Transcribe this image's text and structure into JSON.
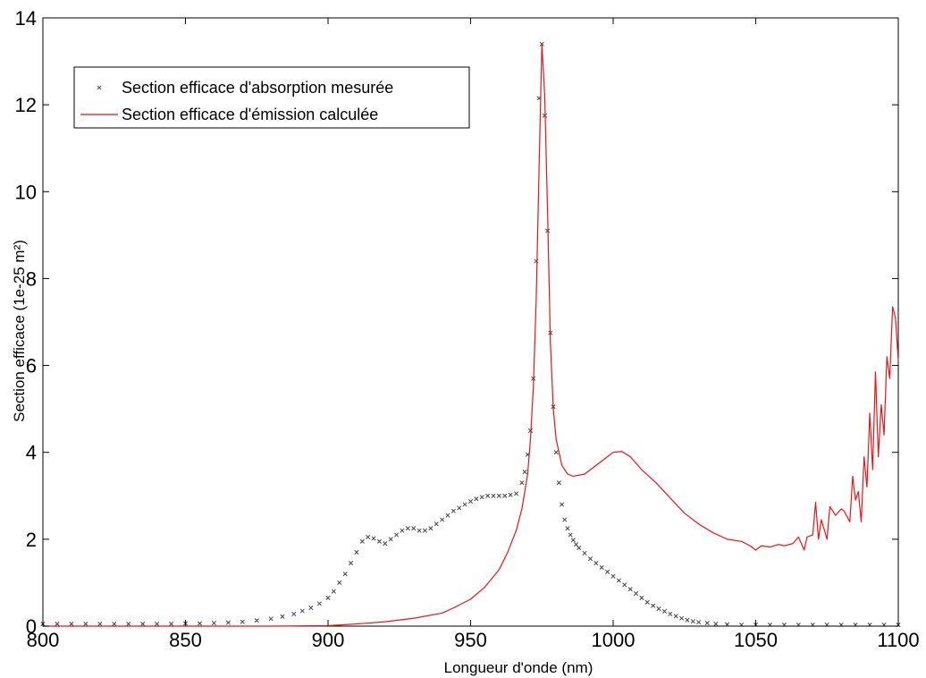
{
  "chart_data": {
    "type": "line",
    "title": "",
    "xlabel": "Longueur d'onde (nm)",
    "ylabel": "Section efficace (1e-25 m²)",
    "xlim": [
      800,
      1100
    ],
    "ylim": [
      0,
      14
    ],
    "x_ticks": [
      800,
      850,
      900,
      950,
      1000,
      1050,
      1100
    ],
    "y_ticks": [
      0,
      2,
      4,
      6,
      8,
      10,
      12,
      14
    ],
    "grid": false,
    "legend_position": "top-left",
    "series": [
      {
        "name": "Section efficace d'absorption mesurée",
        "style": "markers",
        "marker": "x",
        "color": "#444444",
        "x": [
          800,
          805,
          810,
          815,
          820,
          825,
          830,
          835,
          840,
          845,
          850,
          855,
          860,
          865,
          870,
          875,
          880,
          884,
          888,
          891,
          894,
          897,
          900,
          902,
          904,
          906,
          908,
          910,
          912,
          914,
          916,
          918,
          920,
          922,
          924,
          926,
          928,
          930,
          932,
          934,
          936,
          938,
          940,
          942,
          944,
          946,
          948,
          950,
          952,
          954,
          956,
          958,
          960,
          962,
          964,
          966,
          968,
          969,
          970,
          971,
          972,
          973,
          974,
          975,
          976,
          977,
          978,
          979,
          980,
          981,
          982,
          983,
          984,
          985,
          986,
          987,
          988,
          990,
          992,
          994,
          996,
          998,
          1000,
          1002,
          1004,
          1006,
          1008,
          1010,
          1012,
          1014,
          1016,
          1018,
          1020,
          1022,
          1024,
          1026,
          1028,
          1030,
          1033,
          1036,
          1040,
          1045,
          1050,
          1055,
          1060,
          1065,
          1070,
          1075,
          1080,
          1085,
          1090,
          1095,
          1100
        ],
        "y": [
          0.05,
          0.05,
          0.05,
          0.05,
          0.05,
          0.05,
          0.05,
          0.05,
          0.05,
          0.05,
          0.06,
          0.06,
          0.07,
          0.08,
          0.1,
          0.13,
          0.17,
          0.22,
          0.28,
          0.35,
          0.42,
          0.52,
          0.65,
          0.8,
          1.0,
          1.2,
          1.45,
          1.7,
          1.95,
          2.05,
          2.02,
          1.95,
          1.9,
          2.0,
          2.1,
          2.2,
          2.25,
          2.25,
          2.2,
          2.2,
          2.25,
          2.35,
          2.45,
          2.55,
          2.65,
          2.72,
          2.8,
          2.87,
          2.93,
          2.97,
          3.0,
          3.0,
          3.0,
          3.0,
          3.02,
          3.05,
          3.3,
          3.55,
          3.95,
          4.5,
          5.7,
          8.4,
          12.15,
          13.4,
          11.75,
          9.1,
          6.75,
          5.05,
          4.0,
          3.3,
          2.8,
          2.45,
          2.25,
          2.1,
          1.98,
          1.88,
          1.8,
          1.68,
          1.55,
          1.45,
          1.35,
          1.25,
          1.15,
          1.05,
          0.95,
          0.85,
          0.75,
          0.65,
          0.55,
          0.47,
          0.4,
          0.34,
          0.28,
          0.23,
          0.18,
          0.14,
          0.11,
          0.09,
          0.07,
          0.05,
          0.04,
          0.03,
          0.03,
          0.03,
          0.03,
          0.03,
          0.03,
          0.03,
          0.03,
          0.03,
          0.03,
          0.03,
          0.03
        ]
      },
      {
        "name": "Section efficace d'émission calculée",
        "style": "line",
        "color": "#e8151b",
        "x": [
          800,
          850,
          880,
          900,
          910,
          920,
          930,
          940,
          945,
          950,
          955,
          960,
          963,
          966,
          968,
          970,
          971,
          972,
          973,
          974,
          975,
          976,
          977,
          978,
          979,
          980,
          982,
          984,
          986,
          990,
          995,
          1000,
          1003,
          1006,
          1010,
          1015,
          1020,
          1025,
          1030,
          1035,
          1040,
          1045,
          1048,
          1050,
          1052,
          1055,
          1058,
          1060,
          1063,
          1065,
          1067,
          1068,
          1070,
          1071,
          1072,
          1073,
          1075,
          1076,
          1078,
          1080,
          1081,
          1083,
          1084,
          1085,
          1086,
          1087,
          1088,
          1089,
          1090,
          1091,
          1092,
          1093,
          1094,
          1095,
          1096,
          1097,
          1098,
          1099,
          1100
        ],
        "y": [
          0.0,
          0.0,
          0.0,
          0.01,
          0.05,
          0.1,
          0.18,
          0.3,
          0.45,
          0.62,
          0.9,
          1.3,
          1.7,
          2.2,
          2.7,
          3.5,
          4.3,
          5.5,
          7.5,
          10.5,
          13.4,
          12.2,
          9.5,
          6.5,
          5.0,
          4.3,
          3.7,
          3.5,
          3.45,
          3.5,
          3.75,
          4.0,
          4.02,
          3.9,
          3.6,
          3.3,
          2.95,
          2.6,
          2.35,
          2.15,
          2.0,
          1.95,
          1.85,
          1.75,
          1.85,
          1.82,
          1.88,
          1.85,
          1.9,
          2.05,
          1.75,
          2.05,
          2.1,
          2.85,
          2.0,
          2.45,
          2.0,
          2.75,
          2.55,
          2.7,
          2.65,
          2.4,
          3.45,
          2.9,
          3.1,
          2.4,
          3.9,
          3.2,
          4.9,
          3.6,
          5.85,
          3.9,
          5.1,
          4.4,
          6.2,
          5.7,
          7.35,
          7.1,
          6.1
        ]
      }
    ]
  }
}
